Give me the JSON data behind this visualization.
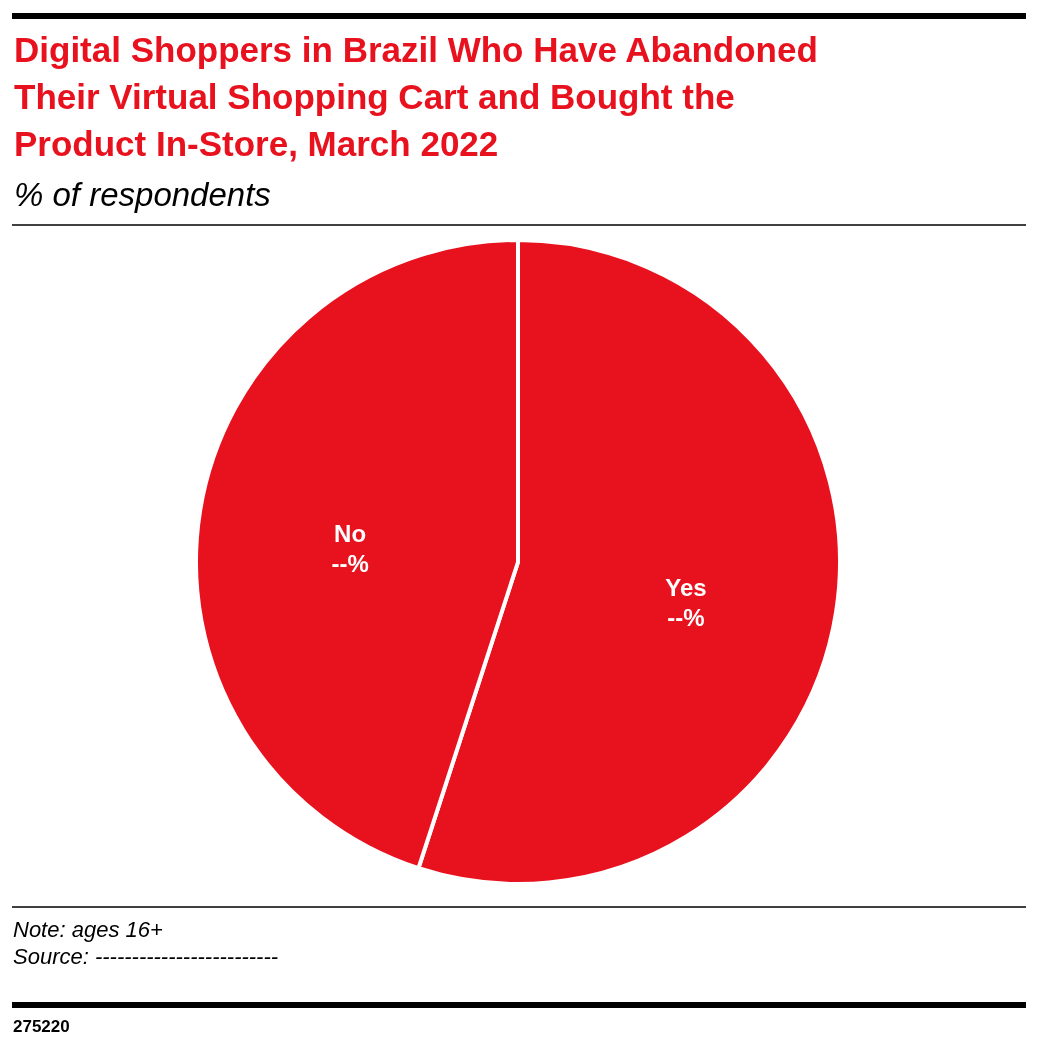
{
  "chart_data": {
    "type": "pie",
    "title": "Digital Shoppers in Brazil Who Have Abandoned Their Virtual Shopping Cart and Bought the Product In-Store, March 2022",
    "subtitle": "% of respondents",
    "categories": [
      "Yes",
      "No"
    ],
    "values": [
      55,
      45
    ],
    "colors": [
      "#e8111e",
      "#e8111e"
    ],
    "value_labels": [
      "--%",
      "--%"
    ],
    "annotations": [
      "Note: ages 16+",
      "Source: -------------------------",
      "275220"
    ]
  }
}
